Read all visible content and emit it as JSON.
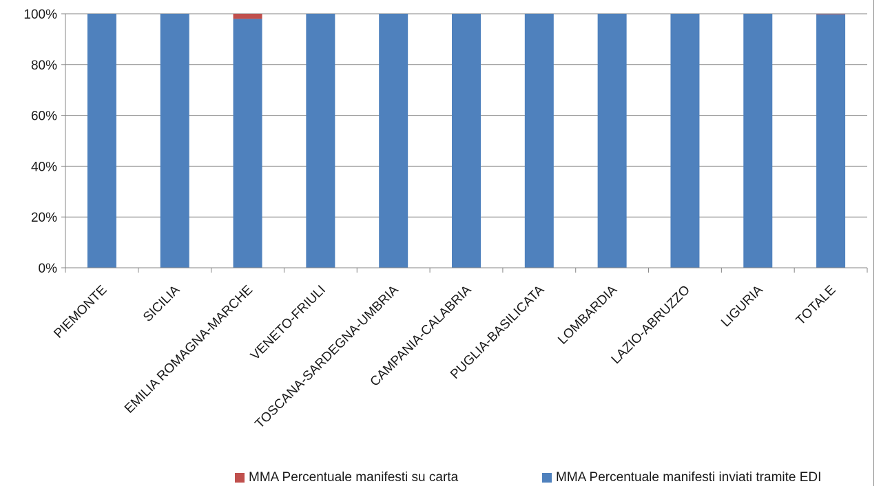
{
  "chart_data": {
    "type": "bar",
    "stacked": true,
    "title": "",
    "xlabel": "",
    "ylabel": "",
    "ylim": [
      0,
      1
    ],
    "grid": true,
    "legend_position": "bottom",
    "y_tick_labels": [
      "0%",
      "20%",
      "40%",
      "60%",
      "80%",
      "100%"
    ],
    "categories": [
      "PIEMONTE",
      "SICILIA",
      "EMILIA ROMAGNA-MARCHE",
      "VENETO-FRIULI",
      "TOSCANA-SARDEGNA-UMBRIA",
      "CAMPANIA-CALABRIA",
      "PUGLIA-BASILICATA",
      "LOMBARDIA",
      "LAZIO-ABRUZZO",
      "LIGURIA",
      "TOTALE"
    ],
    "series": [
      {
        "name": "MMA Percentuale manifesti inviati  tramite EDI",
        "color": "#4F81BD",
        "values": [
          1.0,
          1.0,
          0.98,
          1.0,
          1.0,
          1.0,
          1.0,
          1.0,
          1.0,
          1.0,
          0.998
        ]
      },
      {
        "name": "MMA Percentuale manifesti su carta",
        "color": "#C0504D",
        "values": [
          0.0,
          0.0,
          0.02,
          0.0,
          0.0,
          0.0,
          0.0,
          0.0,
          0.0,
          0.0,
          0.002
        ]
      }
    ]
  }
}
